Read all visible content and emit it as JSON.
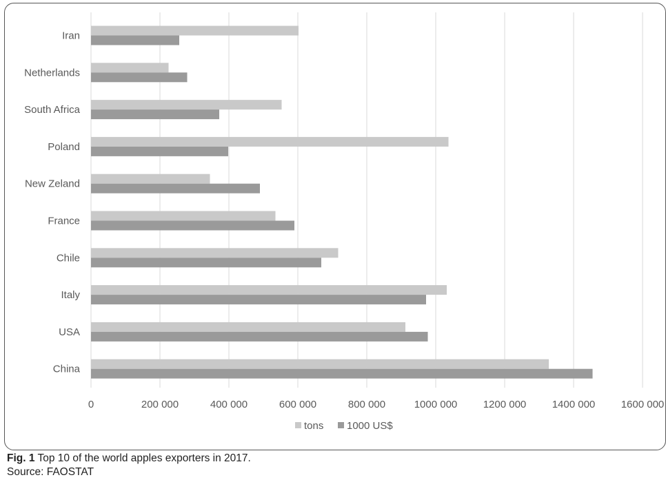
{
  "figure": {
    "label": "Fig. 1",
    "caption": " Top 10 of the world apples exporters in 2017.",
    "source": "Source: FAOSTAT"
  },
  "colors": {
    "tons": "#c9c9c9",
    "usd": "#9a9a9a",
    "grid": "#d9d9d9",
    "text": "#595959"
  },
  "chart_data": {
    "type": "bar",
    "orientation": "horizontal",
    "categories": [
      "Iran",
      "Netherlands",
      "South Africa",
      "Poland",
      "New Zeland",
      "France",
      "Chile",
      "Italy",
      "USA",
      "China"
    ],
    "series": [
      {
        "name": "tons",
        "values": [
          602000,
          225000,
          553000,
          1037000,
          345000,
          535000,
          717000,
          1032000,
          912000,
          1328000
        ]
      },
      {
        "name": "1000 US$",
        "values": [
          256000,
          279000,
          372000,
          398000,
          490000,
          590000,
          668000,
          972000,
          977000,
          1455000
        ]
      }
    ],
    "xlim": [
      0,
      1600000
    ],
    "xticks": [
      "0",
      "200 000",
      "400 000",
      "600 000",
      "800 000",
      "1000 000",
      "1200 000",
      "1400 000",
      "1600 000"
    ],
    "grid": true,
    "legend_position": "bottom"
  }
}
